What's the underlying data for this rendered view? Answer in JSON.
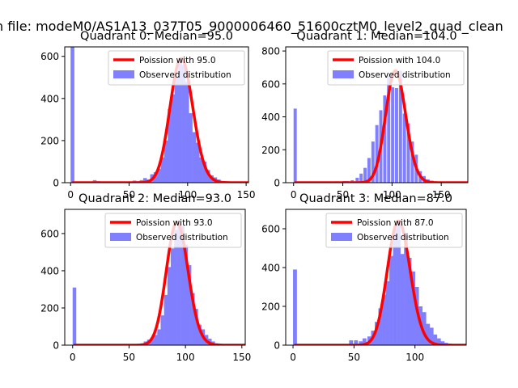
{
  "figure": {
    "suptitle": "n file: modeM0/AS1A13_037T05_9000006460_51600cztM0_level2_quad_clean"
  },
  "legend": {
    "observed_label": "Observed distribution",
    "poisson_color": "#ff0000",
    "hist_color": "#8080ff"
  },
  "chart_data": [
    {
      "type": "bar",
      "title": "Quadrant 0: Median=95.0",
      "median": 95.0,
      "poisson_label": "Poission with 95.0",
      "xlim": [
        -5,
        152
      ],
      "ylim": [
        0,
        645
      ],
      "xticks": [
        0,
        50,
        100,
        150
      ],
      "yticks": [
        0,
        200,
        400,
        600
      ],
      "hist_bins": [
        [
          0,
          650
        ],
        [
          17,
          5
        ],
        [
          19,
          12
        ],
        [
          22,
          7
        ],
        [
          25,
          5
        ],
        [
          40,
          6
        ],
        [
          45,
          3
        ],
        [
          50,
          5
        ],
        [
          53,
          10
        ],
        [
          56,
          7
        ],
        [
          59,
          12
        ],
        [
          62,
          22
        ],
        [
          65,
          15
        ],
        [
          68,
          40
        ],
        [
          71,
          50
        ],
        [
          74,
          65
        ],
        [
          77,
          120
        ],
        [
          80,
          200
        ],
        [
          83,
          350
        ],
        [
          86,
          420
        ],
        [
          89,
          500
        ],
        [
          92,
          590
        ],
        [
          95,
          560
        ],
        [
          98,
          480
        ],
        [
          101,
          330
        ],
        [
          104,
          240
        ],
        [
          107,
          190
        ],
        [
          110,
          120
        ],
        [
          113,
          100
        ],
        [
          116,
          60
        ],
        [
          119,
          35
        ],
        [
          122,
          25
        ],
        [
          125,
          15
        ],
        [
          128,
          8
        ],
        [
          131,
          6
        ],
        [
          134,
          4
        ],
        [
          137,
          3
        ],
        [
          140,
          2
        ],
        [
          143,
          1
        ]
      ]
    },
    {
      "type": "bar",
      "title": "Quadrant 1: Median=104.0",
      "median": 104.0,
      "poisson_label": "Poission with 104.0",
      "xlim": [
        -8,
        177
      ],
      "ylim": [
        0,
        825
      ],
      "xticks": [
        0,
        50,
        100,
        150
      ],
      "yticks": [
        0,
        200,
        400,
        600,
        800
      ],
      "hist_bins": [
        [
          0,
          450
        ],
        [
          42,
          8
        ],
        [
          50,
          10
        ],
        [
          53,
          10
        ],
        [
          58,
          15
        ],
        [
          63,
          30
        ],
        [
          67,
          55
        ],
        [
          71,
          90
        ],
        [
          75,
          150
        ],
        [
          79,
          250
        ],
        [
          83,
          350
        ],
        [
          87,
          440
        ],
        [
          91,
          530
        ],
        [
          95,
          650
        ],
        [
          99,
          580
        ],
        [
          103,
          575
        ],
        [
          107,
          680
        ],
        [
          111,
          420
        ],
        [
          115,
          360
        ],
        [
          119,
          250
        ],
        [
          123,
          170
        ],
        [
          127,
          70
        ],
        [
          131,
          40
        ],
        [
          135,
          20
        ],
        [
          139,
          12
        ],
        [
          143,
          6
        ],
        [
          147,
          4
        ],
        [
          151,
          3
        ],
        [
          155,
          2
        ],
        [
          159,
          1
        ]
      ]
    },
    {
      "type": "bar",
      "title": "Quadrant 2: Median=93.0",
      "median": 93.0,
      "poisson_label": "Poission with 93.0",
      "xlim": [
        -7,
        153
      ],
      "ylim": [
        0,
        730
      ],
      "xticks": [
        0,
        50,
        100,
        150
      ],
      "yticks": [
        0,
        200,
        400,
        600
      ],
      "hist_bins": [
        [
          0,
          310
        ],
        [
          50,
          3
        ],
        [
          55,
          5
        ],
        [
          60,
          10
        ],
        [
          63,
          20
        ],
        [
          66,
          30
        ],
        [
          69,
          40
        ],
        [
          72,
          55
        ],
        [
          75,
          85
        ],
        [
          78,
          160
        ],
        [
          81,
          270
        ],
        [
          84,
          420
        ],
        [
          87,
          520
        ],
        [
          90,
          620
        ],
        [
          93,
          660
        ],
        [
          96,
          640
        ],
        [
          99,
          540
        ],
        [
          102,
          430
        ],
        [
          105,
          280
        ],
        [
          108,
          195
        ],
        [
          111,
          110
        ],
        [
          114,
          85
        ],
        [
          117,
          55
        ],
        [
          120,
          35
        ],
        [
          123,
          20
        ],
        [
          126,
          10
        ],
        [
          129,
          6
        ],
        [
          132,
          4
        ],
        [
          135,
          3
        ],
        [
          138,
          2
        ]
      ]
    },
    {
      "type": "bar",
      "title": "Quadrant 3: Median=87.0",
      "median": 87.0,
      "poisson_label": "Poission with 87.0",
      "xlim": [
        -6,
        142
      ],
      "ylim": [
        0,
        700
      ],
      "xticks": [
        0,
        50,
        100
      ],
      "yticks": [
        0,
        200,
        400,
        600
      ],
      "hist_bins": [
        [
          0,
          390
        ],
        [
          46,
          25
        ],
        [
          50,
          25
        ],
        [
          54,
          20
        ],
        [
          57,
          35
        ],
        [
          61,
          45
        ],
        [
          64,
          75
        ],
        [
          67,
          120
        ],
        [
          70,
          190
        ],
        [
          73,
          260
        ],
        [
          76,
          330
        ],
        [
          79,
          460
        ],
        [
          82,
          600
        ],
        [
          85,
          640
        ],
        [
          88,
          470
        ],
        [
          91,
          580
        ],
        [
          94,
          450
        ],
        [
          97,
          380
        ],
        [
          100,
          300
        ],
        [
          103,
          200
        ],
        [
          106,
          170
        ],
        [
          109,
          110
        ],
        [
          112,
          90
        ],
        [
          115,
          55
        ],
        [
          118,
          35
        ],
        [
          121,
          20
        ],
        [
          124,
          12
        ],
        [
          127,
          8
        ],
        [
          130,
          5
        ],
        [
          133,
          2
        ]
      ]
    }
  ]
}
